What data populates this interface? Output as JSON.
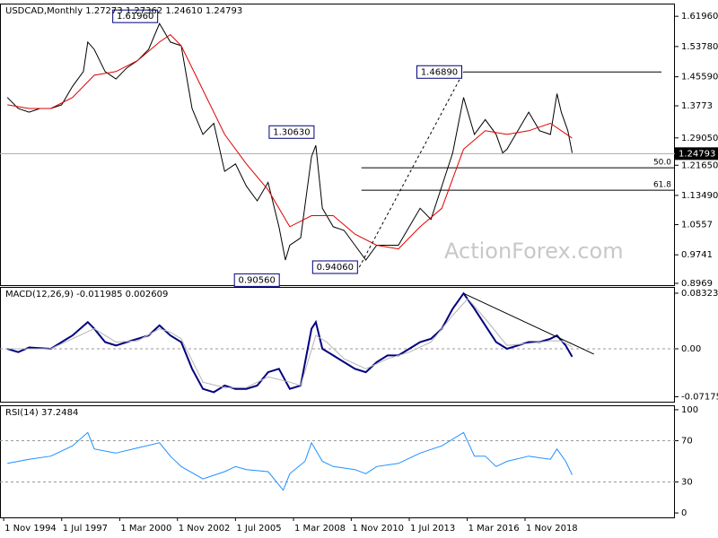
{
  "chart_data": [
    {
      "type": "line",
      "title": "USDCAD,Monthly  1.27273 1.27362 1.24610 1.24793",
      "ylim": [
        0.892,
        1.654
      ],
      "yticks": [
        {
          "value": 1.6196,
          "label": "1.61960"
        },
        {
          "value": 1.5378,
          "label": "1.53780"
        },
        {
          "value": 1.4559,
          "label": "1.45590"
        },
        1.3773,
        {
          "value": 1.2905,
          "label": "1.29050"
        },
        {
          "value": 1.2165,
          "label": "1.21650"
        },
        {
          "value": 1.1349,
          "label": "1.13490"
        },
        1.0557,
        0.9741,
        0.8969
      ],
      "series": [
        {
          "color": "#000000",
          "x": [
            1995.0,
            1995.5,
            1996.0,
            1996.5,
            1997.0,
            1997.5,
            1998.0,
            1998.5,
            1998.7,
            1999.0,
            1999.5,
            2000.0,
            2000.5,
            2001.0,
            2001.5,
            2002.0,
            2002.5,
            2003.0,
            2003.5,
            2004.0,
            2004.5,
            2005.0,
            2005.5,
            2006.0,
            2006.5,
            2007.0,
            2007.5,
            2007.8,
            2008.0,
            2008.5,
            2009.0,
            2009.2,
            2009.5,
            2010.0,
            2010.5,
            2011.0,
            2011.5,
            2012.0,
            2012.5,
            2013.0,
            2013.5,
            2014.0,
            2014.5,
            2015.0,
            2015.5,
            2016.0,
            2016.5,
            2017.0,
            2017.5,
            2017.8,
            2018.0,
            2018.5,
            2019.0,
            2019.5,
            2020.0,
            2020.3,
            2020.5,
            2020.8,
            2021.0
          ],
          "values": [
            1.4,
            1.37,
            1.36,
            1.37,
            1.37,
            1.38,
            1.43,
            1.47,
            1.55,
            1.53,
            1.47,
            1.45,
            1.48,
            1.5,
            1.53,
            1.6,
            1.55,
            1.54,
            1.37,
            1.3,
            1.33,
            1.2,
            1.22,
            1.16,
            1.12,
            1.17,
            1.05,
            0.96,
            1.0,
            1.02,
            1.24,
            1.27,
            1.1,
            1.05,
            1.04,
            1.0,
            0.96,
            1.0,
            1.0,
            1.0,
            1.05,
            1.1,
            1.07,
            1.16,
            1.25,
            1.4,
            1.3,
            1.34,
            1.3,
            1.25,
            1.26,
            1.31,
            1.36,
            1.31,
            1.3,
            1.41,
            1.36,
            1.31,
            1.25
          ]
        },
        {
          "color": "#e00000",
          "x": [
            1995.0,
            1996.0,
            1997.0,
            1998.0,
            1999.0,
            2000.0,
            2001.0,
            2002.0,
            2002.5,
            2003.0,
            2004.0,
            2005.0,
            2006.0,
            2007.0,
            2008.0,
            2009.0,
            2010.0,
            2011.0,
            2012.0,
            2013.0,
            2014.0,
            2015.0,
            2016.0,
            2017.0,
            2018.0,
            2019.0,
            2020.0,
            2021.0
          ],
          "values": [
            1.38,
            1.37,
            1.37,
            1.4,
            1.46,
            1.47,
            1.5,
            1.55,
            1.57,
            1.54,
            1.42,
            1.3,
            1.22,
            1.15,
            1.05,
            1.08,
            1.08,
            1.03,
            1.0,
            0.99,
            1.05,
            1.1,
            1.26,
            1.31,
            1.3,
            1.31,
            1.33,
            1.29
          ]
        }
      ],
      "annotations": [
        {
          "x": 2002.0,
          "value": 1.6196,
          "label": "1.61960"
        },
        {
          "x": 2009.2,
          "value": 1.3063,
          "label": "1.30630"
        },
        {
          "x": 2007.6,
          "value": 0.9056,
          "label": "0.90560"
        },
        {
          "x": 2011.2,
          "value": 0.9406,
          "label": "0.94060"
        },
        {
          "x": 2016.0,
          "value": 1.4689,
          "label": "1.46890"
        }
      ],
      "levels": [
        {
          "x": 2011.3,
          "value": 1.2097,
          "label": "50.0"
        },
        {
          "x": 2011.3,
          "value": 1.149,
          "label": "61.8"
        }
      ],
      "current": {
        "value": 1.24793,
        "label": "1.24793"
      }
    },
    {
      "type": "line",
      "title": "MACD(12,26,9) -0.011985 0.002609",
      "ylim": [
        -0.0792,
        0.0926
      ],
      "yticks": [
        0.083235,
        {
          "value": 0,
          "label": "0.00"
        },
        -0.071752
      ],
      "levels": [
        0
      ],
      "series": [
        {
          "color": "#000080",
          "x": [
            1995.0,
            1995.5,
            1996.0,
            1997.0,
            1997.5,
            1998.0,
            1998.7,
            1999.0,
            1999.5,
            2000.0,
            2000.5,
            2001.0,
            2001.5,
            2002.0,
            2002.5,
            2003.0,
            2003.5,
            2004.0,
            2004.5,
            2005.0,
            2005.5,
            2006.0,
            2006.5,
            2007.0,
            2007.5,
            2008.0,
            2008.5,
            2009.0,
            2009.2,
            2009.5,
            2010.0,
            2010.5,
            2011.0,
            2011.5,
            2012.0,
            2012.5,
            2013.0,
            2013.5,
            2014.0,
            2014.5,
            2015.0,
            2015.5,
            2016.0,
            2016.5,
            2017.0,
            2017.5,
            2018.0,
            2018.5,
            2019.0,
            2019.5,
            2020.0,
            2020.3,
            2020.7,
            2021.0
          ],
          "values": [
            0.0,
            -0.005,
            0.002,
            0.0,
            0.01,
            0.02,
            0.04,
            0.03,
            0.01,
            0.005,
            0.01,
            0.015,
            0.02,
            0.035,
            0.02,
            0.01,
            -0.03,
            -0.06,
            -0.065,
            -0.055,
            -0.06,
            -0.06,
            -0.055,
            -0.035,
            -0.03,
            -0.06,
            -0.055,
            0.03,
            0.04,
            0.0,
            -0.01,
            -0.02,
            -0.03,
            -0.035,
            -0.02,
            -0.01,
            -0.01,
            0.0,
            0.01,
            0.015,
            0.03,
            0.06,
            0.083,
            0.06,
            0.035,
            0.01,
            0.0,
            0.005,
            0.01,
            0.01,
            0.015,
            0.02,
            0.005,
            -0.012
          ]
        },
        {
          "color": "#b4b4b4",
          "x": [
            1995.0,
            1996.0,
            1997.0,
            1998.0,
            1999.0,
            2000.0,
            2001.0,
            2002.0,
            2002.5,
            2003.0,
            2004.0,
            2005.0,
            2006.0,
            2007.0,
            2008.0,
            2008.5,
            2009.2,
            2009.7,
            2010.5,
            2011.5,
            2012.5,
            2013.5,
            2014.5,
            2015.5,
            2016.2,
            2017.0,
            2018.0,
            2019.0,
            2020.0,
            2020.5,
            2021.0
          ],
          "values": [
            0.0,
            0.0,
            0.0,
            0.015,
            0.03,
            0.01,
            0.012,
            0.03,
            0.025,
            0.015,
            -0.05,
            -0.058,
            -0.058,
            -0.042,
            -0.05,
            -0.055,
            0.02,
            0.01,
            -0.015,
            -0.03,
            -0.015,
            -0.005,
            0.01,
            0.05,
            0.075,
            0.045,
            0.005,
            0.008,
            0.012,
            0.012,
            0.003
          ]
        }
      ],
      "trendline": {
        "x": [
          2016.0,
          2022.0
        ],
        "values": [
          0.083,
          -0.008
        ]
      }
    },
    {
      "type": "line",
      "title": "RSI(14) 37.2484",
      "ylim": [
        -4.3,
        104.3
      ],
      "yticks": [
        100,
        70,
        30,
        0
      ],
      "levels": [
        70,
        30
      ],
      "xlim": [
        1994.66,
        2025.73
      ],
      "xticks": [
        {
          "value": 1994.83,
          "label": "1 Nov 1994"
        },
        {
          "value": 1997.5,
          "label": "1 Jul 1997"
        },
        {
          "value": 2000.17,
          "label": "1 Mar 2000"
        },
        {
          "value": 2002.83,
          "label": "1 Nov 2002"
        },
        {
          "value": 2005.5,
          "label": "1 Jul 2005"
        },
        {
          "value": 2008.17,
          "label": "1 Mar 2008"
        },
        {
          "value": 2010.83,
          "label": "1 Nov 2010"
        },
        {
          "value": 2013.5,
          "label": "1 Jul 2013"
        },
        {
          "value": 2016.17,
          "label": "1 Mar 2016"
        },
        {
          "value": 2018.83,
          "label": "1 Nov 2018"
        }
      ],
      "series": [
        {
          "color": "#1e90ff",
          "x": [
            1995.0,
            1996.0,
            1997.0,
            1998.0,
            1998.7,
            1999.0,
            2000.0,
            2001.0,
            2002.0,
            2002.5,
            2003.0,
            2004.0,
            2005.0,
            2005.5,
            2006.0,
            2007.0,
            2007.7,
            2008.0,
            2008.7,
            2009.0,
            2009.5,
            2010.0,
            2011.0,
            2011.5,
            2012.0,
            2013.0,
            2014.0,
            2015.0,
            2016.0,
            2016.5,
            2017.0,
            2017.5,
            2018.0,
            2019.0,
            2020.0,
            2020.3,
            2020.7,
            2021.0
          ],
          "values": [
            48,
            52,
            55,
            65,
            78,
            62,
            58,
            63,
            68,
            55,
            45,
            33,
            40,
            45,
            42,
            40,
            22,
            38,
            50,
            68,
            50,
            45,
            42,
            38,
            45,
            48,
            58,
            65,
            78,
            55,
            55,
            45,
            50,
            55,
            52,
            62,
            50,
            37
          ]
        }
      ]
    }
  ],
  "watermark": "ActionForex.com"
}
